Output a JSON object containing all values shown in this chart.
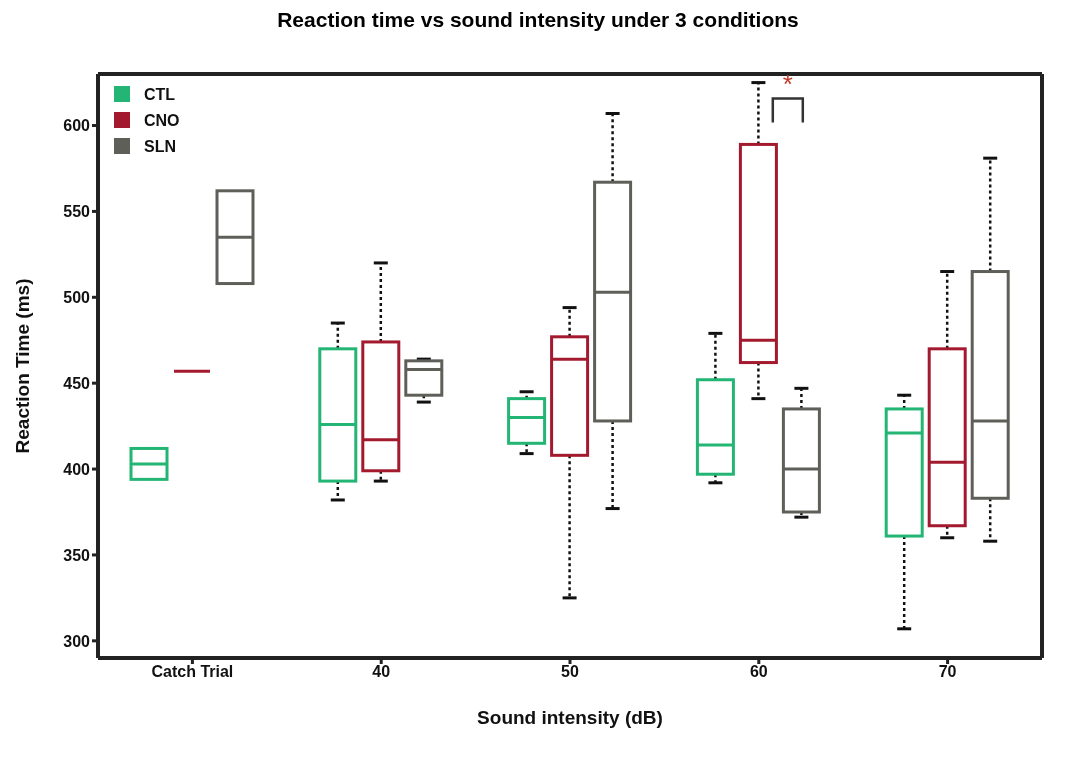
{
  "chart_data": {
    "type": "box",
    "title": "Reaction time vs sound intensity under 3 conditions",
    "xlabel": "Sound intensity (dB)",
    "ylabel": "Reaction Time (ms)",
    "categories": [
      "Catch Trial",
      "40",
      "50",
      "60",
      "70"
    ],
    "series": [
      {
        "name": "CTL",
        "color": "#22b573",
        "boxes": [
          {
            "low": 394,
            "q1": 394,
            "median": 403,
            "q3": 412,
            "high": 412
          },
          {
            "low": 382,
            "q1": 393,
            "median": 426,
            "q3": 470,
            "high": 485
          },
          {
            "low": 409,
            "q1": 415,
            "median": 430,
            "q3": 441,
            "high": 445
          },
          {
            "low": 392,
            "q1": 397,
            "median": 414,
            "q3": 452,
            "high": 479
          },
          {
            "low": 307,
            "q1": 361,
            "median": 421,
            "q3": 435,
            "high": 443
          }
        ]
      },
      {
        "name": "CNO",
        "color": "#a31a2e",
        "boxes": [
          {
            "low": 457,
            "q1": 457,
            "median": 457,
            "q3": 457,
            "high": 457
          },
          {
            "low": 393,
            "q1": 399,
            "median": 417,
            "q3": 474,
            "high": 520
          },
          {
            "low": 325,
            "q1": 408,
            "median": 464,
            "q3": 477,
            "high": 494
          },
          {
            "low": 441,
            "q1": 462,
            "median": 475,
            "q3": 589,
            "high": 625
          },
          {
            "low": 360,
            "q1": 367,
            "median": 404,
            "q3": 470,
            "high": 515
          }
        ]
      },
      {
        "name": "SLN",
        "color": "#5f5f5a",
        "boxes": [
          {
            "low": 508,
            "q1": 508,
            "median": 535,
            "q3": 562,
            "high": 562
          },
          {
            "low": 439,
            "q1": 443,
            "median": 458,
            "q3": 463,
            "high": 464
          },
          {
            "low": 377,
            "q1": 428,
            "median": 503,
            "q3": 567,
            "high": 607
          },
          {
            "low": 372,
            "q1": 375,
            "median": 400,
            "q3": 435,
            "high": 447
          },
          {
            "low": 358,
            "q1": 383,
            "median": 428,
            "q3": 515,
            "high": 581
          }
        ]
      }
    ],
    "ylim": [
      290,
      630
    ],
    "yticks": [
      300,
      350,
      400,
      450,
      500,
      550,
      600
    ],
    "grid": false,
    "legend": "top left",
    "annotations": [
      "*"
    ]
  }
}
